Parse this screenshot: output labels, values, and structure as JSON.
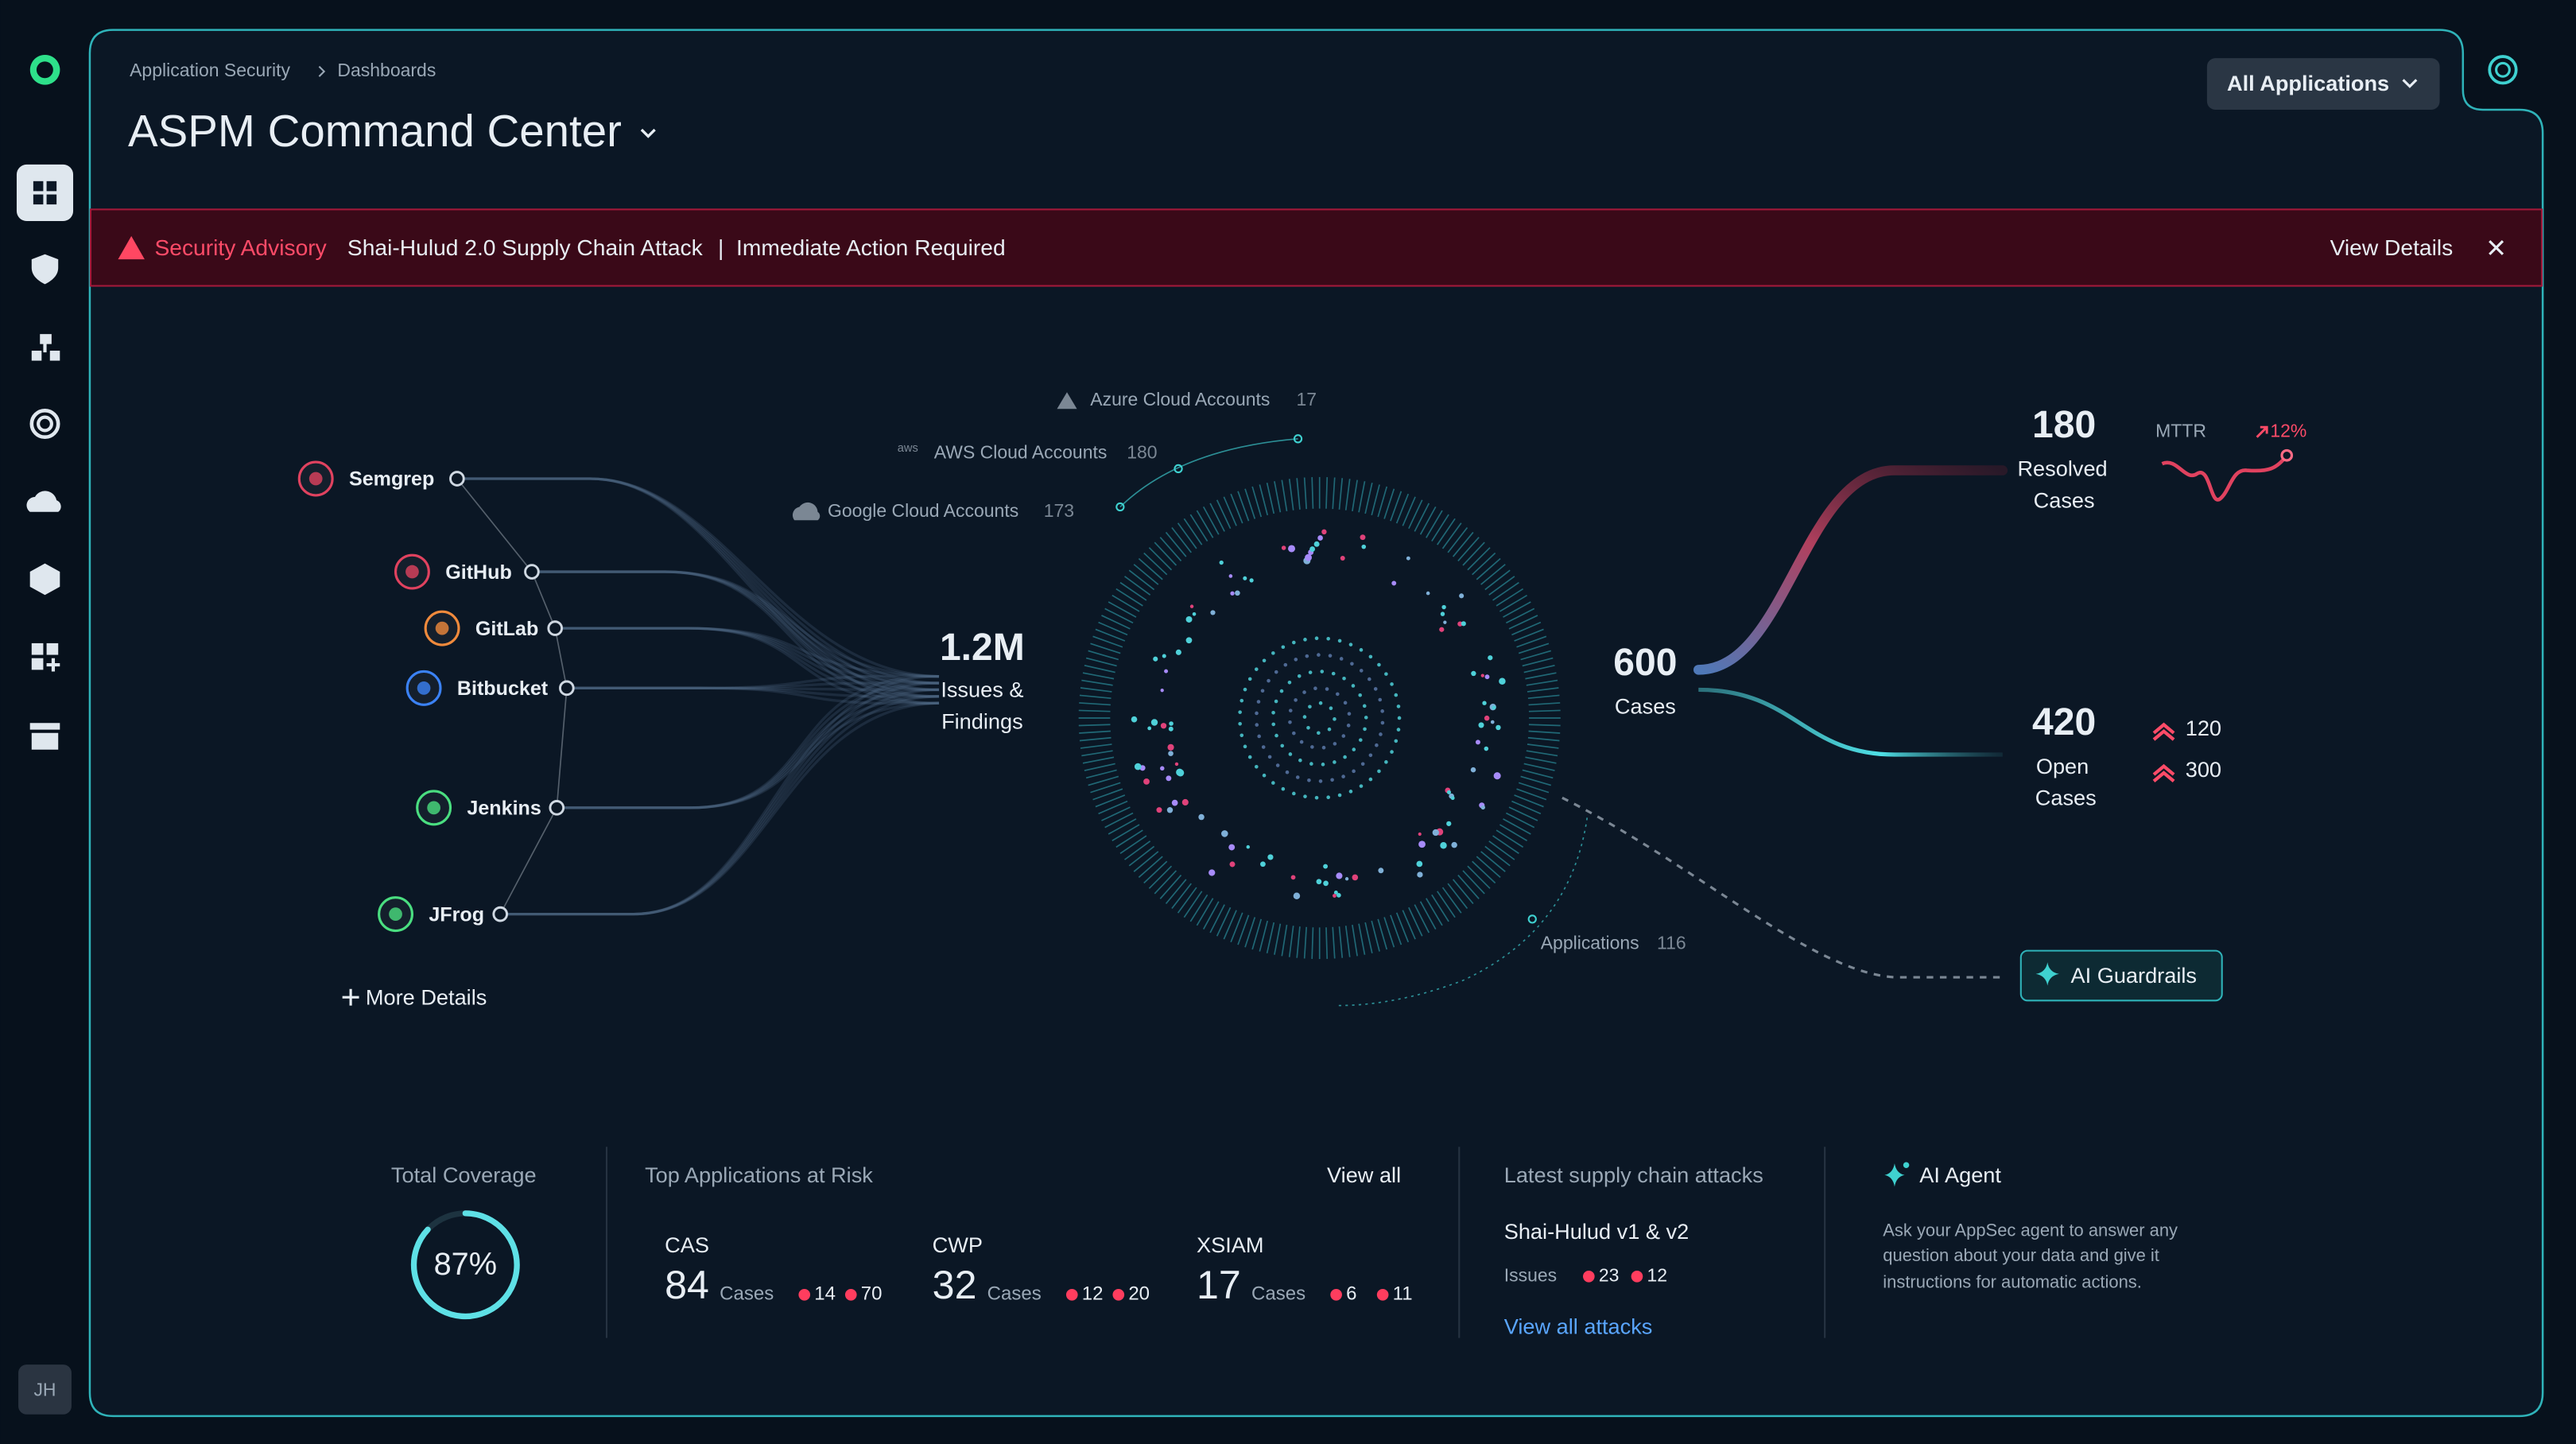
{
  "sidebar": {
    "user_initials": "JH"
  },
  "header": {
    "breadcrumb": [
      "Application Security",
      "Dashboards"
    ],
    "title": "ASPM Command Center",
    "app_filter": "All Applications"
  },
  "advisory": {
    "label": "Security Advisory",
    "title": "Shai-Hulud 2.0 Supply Chain Attack",
    "separator": "|",
    "message": "Immediate Action Required",
    "action": "View Details"
  },
  "sources": [
    "Semgrep",
    "GitHub",
    "GitLab",
    "Bitbucket",
    "Jenkins",
    "JFrog"
  ],
  "more_details": "More Details",
  "findings": {
    "value": "1.2M",
    "label_lines": [
      "Issues &",
      "Findings"
    ]
  },
  "cloud_accounts": [
    {
      "name": "Azure Cloud Accounts",
      "count": 17
    },
    {
      "name": "AWS Cloud Accounts",
      "count": 180
    },
    {
      "name": "Google Cloud Accounts",
      "count": 173
    }
  ],
  "applications": {
    "label": "Applications",
    "count": 116
  },
  "cases": {
    "total": 600,
    "label": "Cases"
  },
  "resolved": {
    "count": 180,
    "label_lines": [
      "Resolved",
      "Cases"
    ],
    "mttr_label": "MTTR",
    "mttr_change": "12%"
  },
  "open": {
    "count": 420,
    "label_lines": [
      "Open",
      "Cases"
    ],
    "breakdown": [
      120,
      300
    ]
  },
  "ai_guardrails": "AI Guardrails",
  "coverage": {
    "title": "Total Coverage",
    "value": 87,
    "value_label": "87%"
  },
  "top_apps": {
    "title": "Top Applications at Risk",
    "action": "View all",
    "unit": "Cases",
    "apps": [
      {
        "name": "CAS",
        "cases": 84,
        "issues": [
          14,
          70
        ]
      },
      {
        "name": "CWP",
        "cases": 32,
        "issues": [
          12,
          20
        ]
      },
      {
        "name": "XSIAM",
        "cases": 17,
        "issues": [
          6,
          11
        ]
      }
    ]
  },
  "supply_chain": {
    "title": "Latest supply chain attacks",
    "attack": "Shai-Hulud v1 & v2",
    "issues_label": "Issues",
    "issues": [
      23,
      12
    ],
    "action": "View all attacks"
  },
  "ai_agent": {
    "title": "AI Agent",
    "description_lines": [
      "Ask your AppSec agent to answer any",
      "question about your data and give it",
      "instructions for automatic actions."
    ]
  }
}
